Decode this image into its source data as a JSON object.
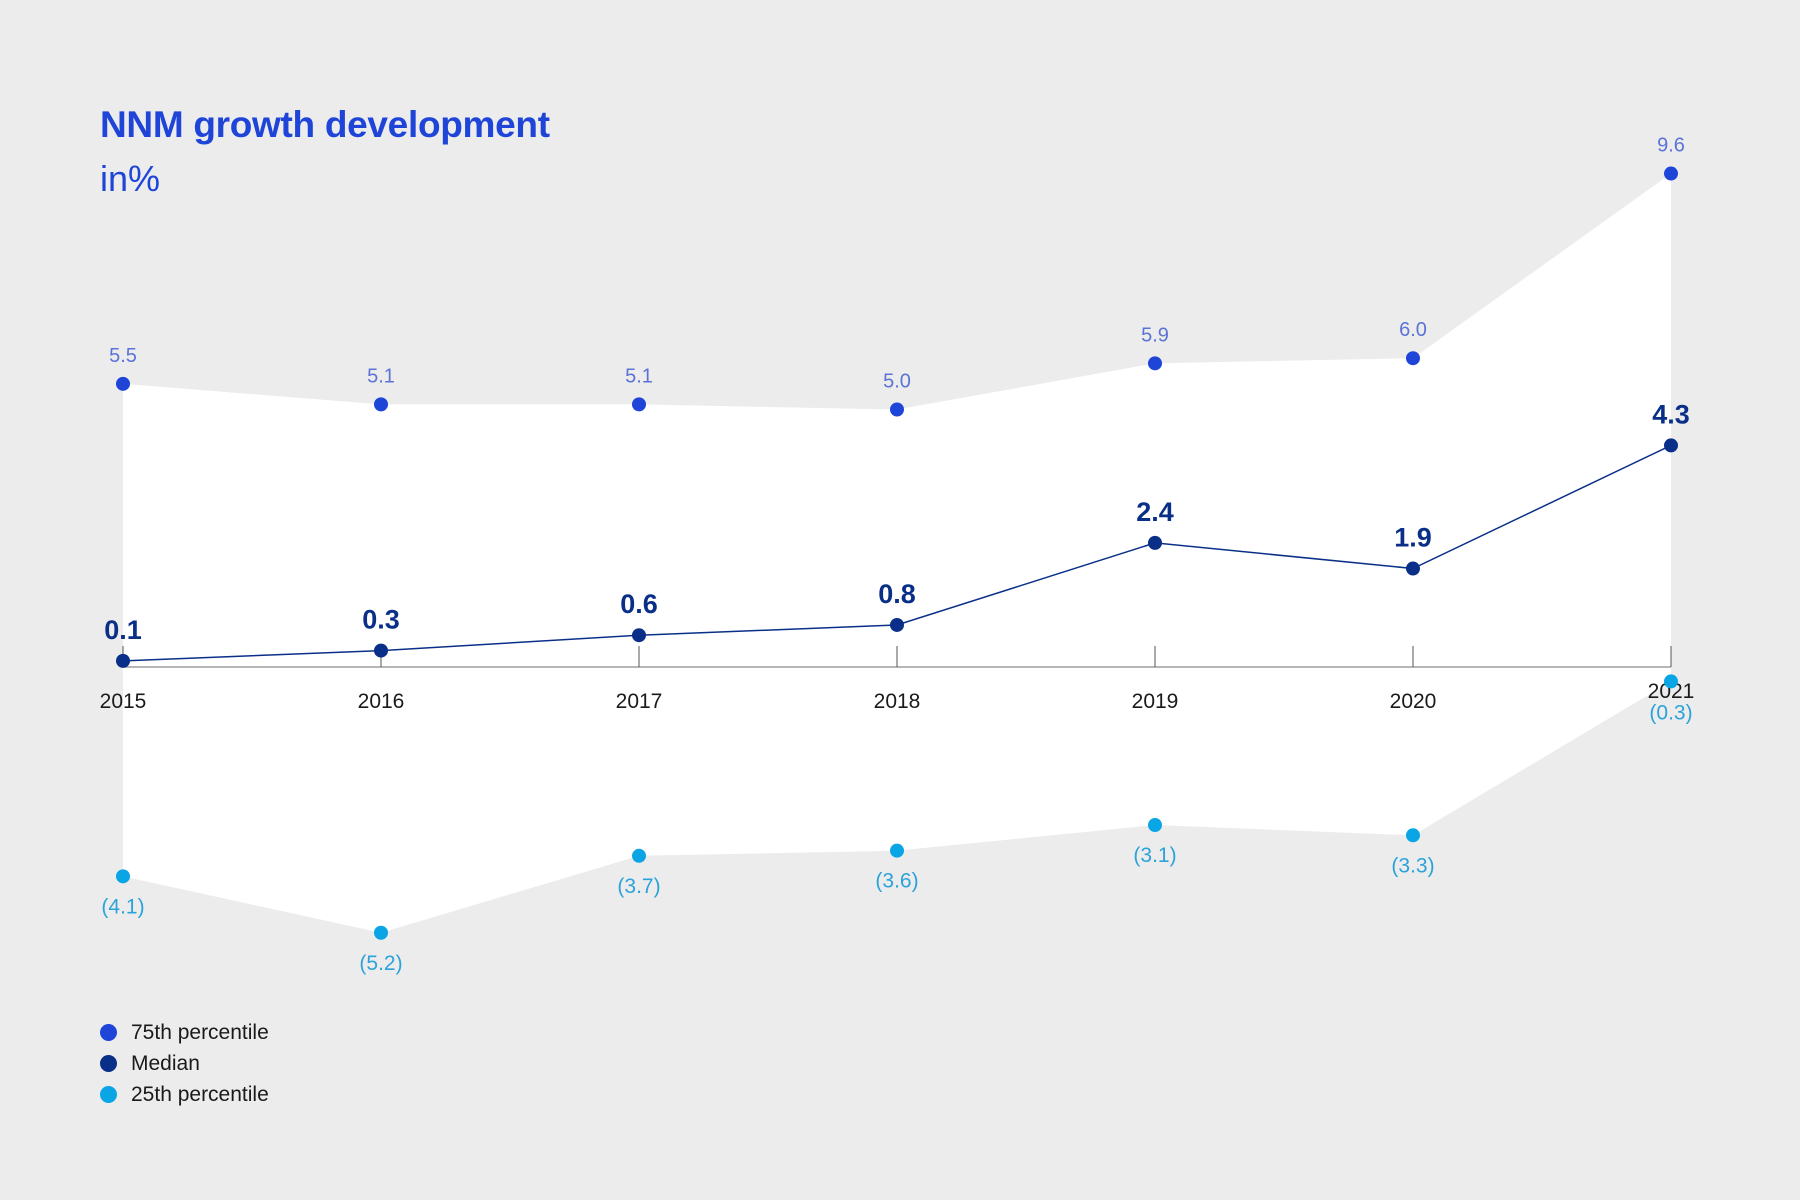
{
  "chart_data": {
    "type": "line",
    "title": "NNM growth development",
    "subtitle": "in%",
    "xlabel": "",
    "ylabel": "",
    "categories": [
      "2015",
      "2016",
      "2017",
      "2018",
      "2019",
      "2020",
      "2021"
    ],
    "ylim": [
      -5.2,
      9.6
    ],
    "grid": false,
    "legend_position": "bottom-left",
    "band_fill": "between 25th and 75th percentile",
    "series": [
      {
        "name": "75th percentile",
        "color": "#1e44d8",
        "label_color": "#5b73d6",
        "values": [
          5.5,
          5.1,
          5.1,
          5.0,
          5.9,
          6.0,
          9.6
        ],
        "labels": [
          "5.5",
          "5.1",
          "5.1",
          "5.0",
          "5.9",
          "6.0",
          "9.6"
        ]
      },
      {
        "name": "Median",
        "color": "#0a2f88",
        "label_color": "#0a2f88",
        "values": [
          0.1,
          0.3,
          0.6,
          0.8,
          2.4,
          1.9,
          4.3
        ],
        "labels": [
          "0.1",
          "0.3",
          "0.6",
          "0.8",
          "2.4",
          "1.9",
          "4.3"
        ]
      },
      {
        "name": "25th percentile",
        "color": "#0aa5e4",
        "label_color": "#2ba3da",
        "values": [
          -4.1,
          -5.2,
          -3.7,
          -3.6,
          -3.1,
          -3.3,
          -0.3
        ],
        "labels": [
          "(4.1)",
          "(5.2)",
          "(3.7)",
          "(3.6)",
          "(3.1)",
          "(3.3)",
          "(0.3)"
        ]
      }
    ]
  },
  "legend": [
    {
      "label": "75th percentile",
      "color": "#1e44d8"
    },
    {
      "label": "Median",
      "color": "#0a2f88"
    },
    {
      "label": "25th percentile",
      "color": "#0aa5e4"
    }
  ]
}
